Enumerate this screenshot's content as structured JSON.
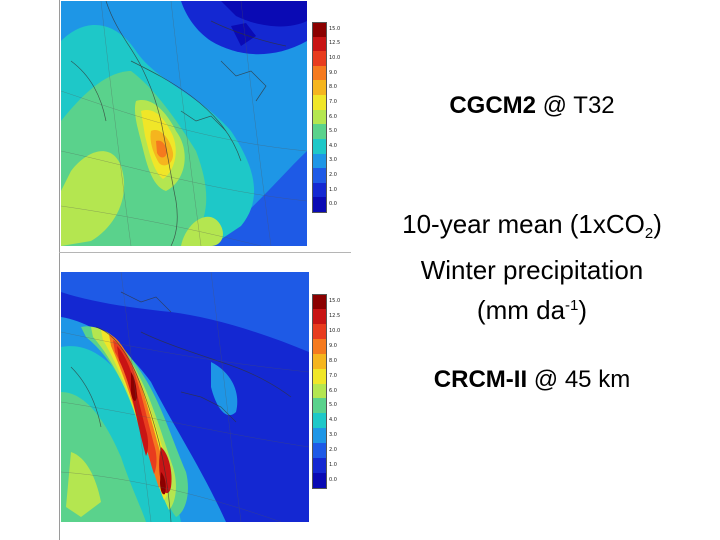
{
  "slide": {
    "title_bold": "CGCM2",
    "title_rest": " @ T32",
    "desc_line1_pre": "10-year mean (1x",
    "desc_line1_co": "CO",
    "desc_line1_sub": "2",
    "desc_line1_post": ")",
    "desc_line2": "Winter precipitation",
    "desc_line3_pre": "(mm da",
    "desc_line3_sup": "-1",
    "desc_line3_post": ")",
    "model2_bold": "CRCM-II",
    "model2_rest": " @ 45 km"
  },
  "colorbar": {
    "labels": [
      "15.0",
      "12.5",
      "10.0",
      "9.0",
      "8.0",
      "7.0",
      "6.0",
      "5.0",
      "4.0",
      "3.0",
      "2.0",
      "1.0",
      "0.0"
    ],
    "colors": [
      "#8b0000",
      "#c81414",
      "#e83c1e",
      "#f57a1e",
      "#f5b51e",
      "#f0e628",
      "#b4e650",
      "#5ad28c",
      "#1ec8c8",
      "#1e96e6",
      "#1e5ae6",
      "#1428d2",
      "#0a0ab4"
    ]
  }
}
